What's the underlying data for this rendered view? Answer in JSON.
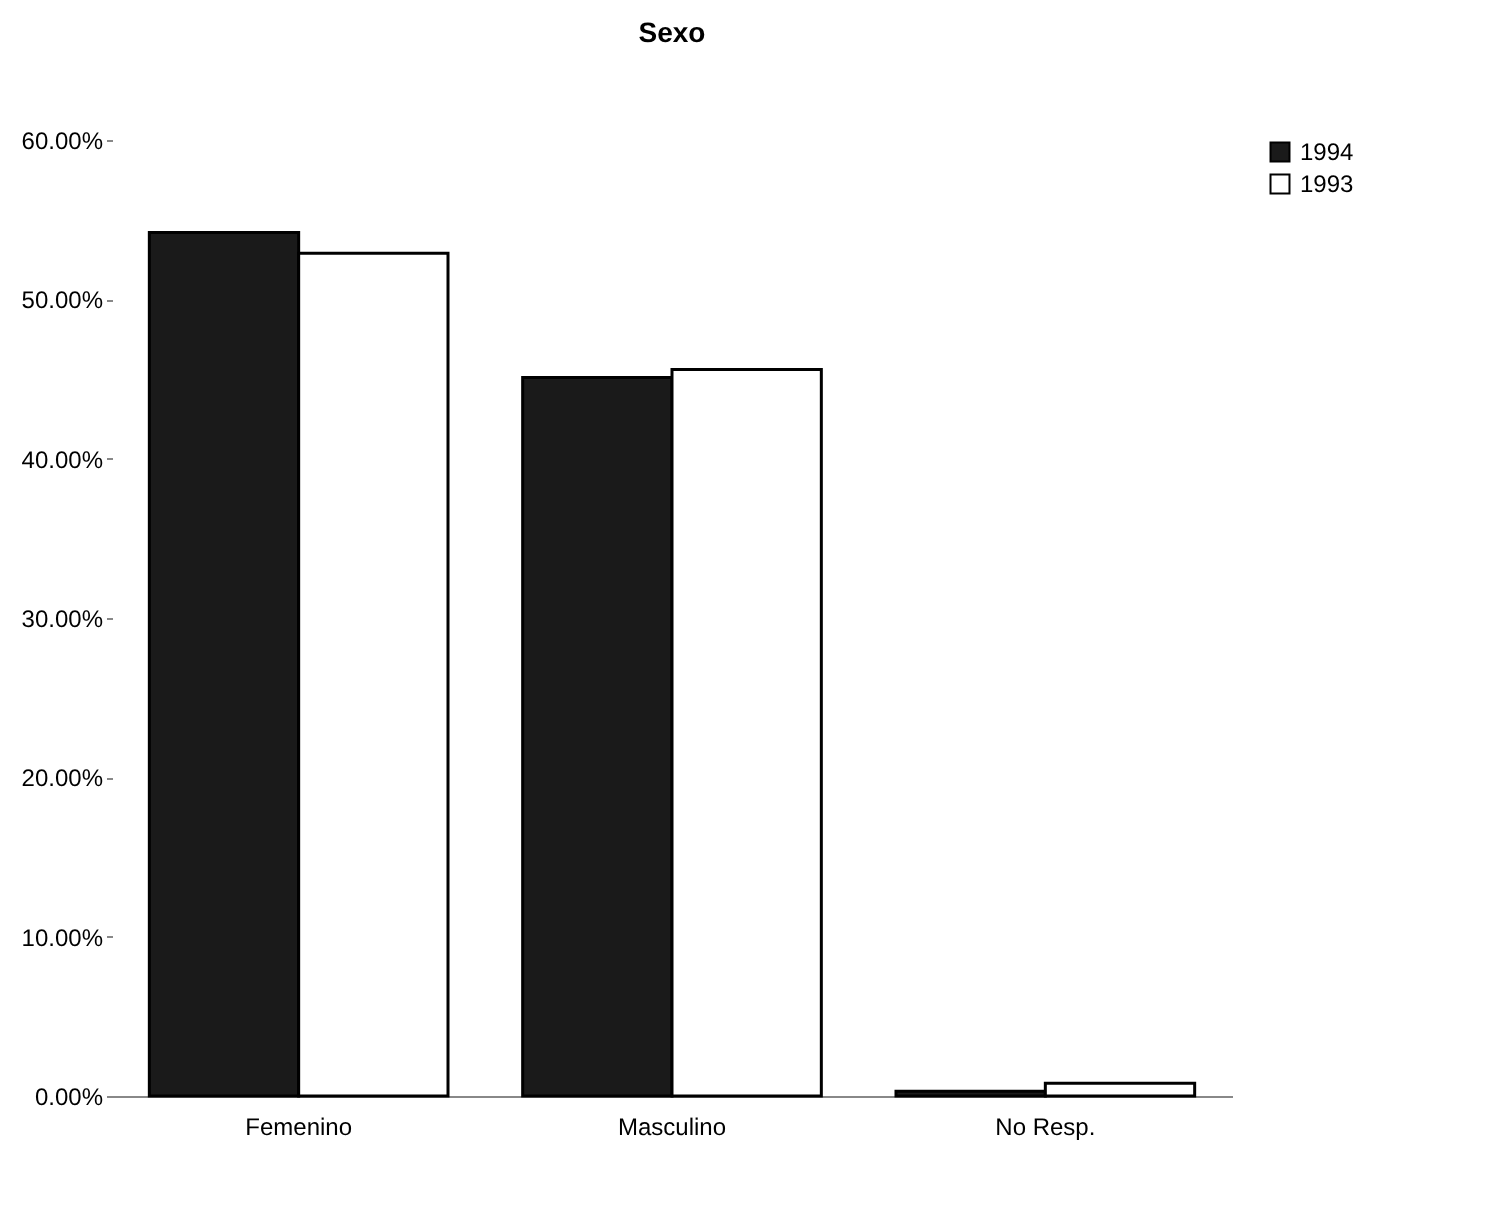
{
  "chart_data": {
    "type": "bar",
    "title": "Sexo",
    "categories": [
      "Femenino",
      "Masculino",
      "No Resp."
    ],
    "series": [
      {
        "name": "1994",
        "color": "#1a1a1a",
        "values": [
          54.2,
          45.1,
          0.3
        ]
      },
      {
        "name": "1993",
        "color": "#ffffff",
        "values": [
          52.9,
          45.6,
          0.8
        ]
      }
    ],
    "ylim": [
      0,
      60
    ],
    "yticks": [
      {
        "value": 0,
        "label": "0.00%"
      },
      {
        "value": 10,
        "label": "10.00%"
      },
      {
        "value": 20,
        "label": "20.00%"
      },
      {
        "value": 30,
        "label": "30.00%"
      },
      {
        "value": 40,
        "label": "40.00%"
      },
      {
        "value": 50,
        "label": "50.00%"
      },
      {
        "value": 60,
        "label": "60.00%"
      }
    ],
    "grid": false,
    "legend": "right"
  }
}
